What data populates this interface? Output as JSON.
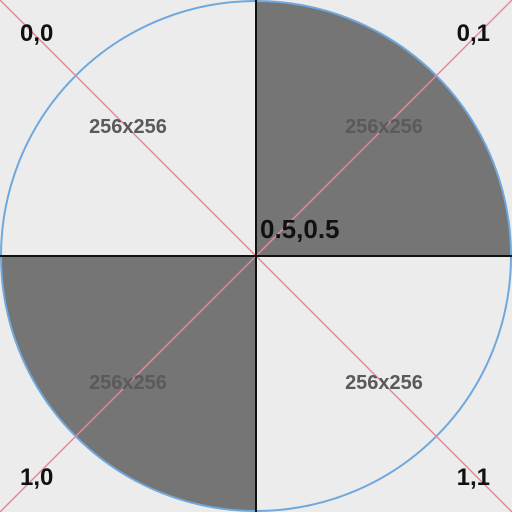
{
  "colors": {
    "background": "#ececec",
    "quadrant_light": "#ececec",
    "quadrant_dark": "#757575",
    "circle_outline": "#6fa8dc",
    "diagonal_lines": "#e08a9a",
    "axis_lines": "#111111",
    "quad_text": "#5a5a5a",
    "corner_text": "#111111"
  },
  "corners": {
    "top_left": "0,0",
    "top_right": "0,1",
    "bottom_left": "1,0",
    "bottom_right": "1,1"
  },
  "center_label": "0.5,0.5",
  "quadrants": {
    "top_left": {
      "label": "256x256",
      "shade": "light"
    },
    "top_right": {
      "label": "256x256",
      "shade": "dark"
    },
    "bottom_left": {
      "label": "256x256",
      "shade": "dark"
    },
    "bottom_right": {
      "label": "256x256",
      "shade": "light"
    }
  }
}
